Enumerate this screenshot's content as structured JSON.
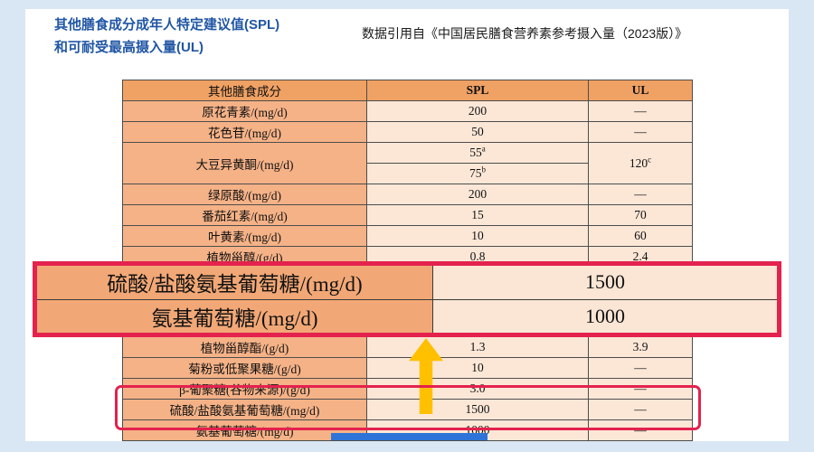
{
  "page": {
    "title_line1": "其他膳食成分成年人特定建议值(SPL)",
    "title_line2": "和可耐受最高摄入量(UL)",
    "source_note": "数据引用自《中国居民膳食营养素参考摄入量（2023版）》"
  },
  "table": {
    "headers": [
      "其他膳食成分",
      "SPL",
      "UL"
    ],
    "rows": [
      {
        "label": "原花青素/(mg/d)",
        "spl": "200",
        "ul": "—"
      },
      {
        "label": "花色苷/(mg/d)",
        "spl": "50",
        "ul": "—"
      },
      {
        "type": "split",
        "label": "大豆异黄酮/(mg/d)",
        "spl_top": "55",
        "spl_top_sup": "a",
        "spl_bottom": "75",
        "spl_bottom_sup": "b",
        "ul": "120",
        "ul_sup": "c"
      },
      {
        "label": "绿原酸/(mg/d)",
        "spl": "200",
        "ul": "—"
      },
      {
        "label": "番茄红素/(mg/d)",
        "spl": "15",
        "ul": "70"
      },
      {
        "label": "叶黄素/(mg/d)",
        "spl": "10",
        "ul": "60"
      },
      {
        "label": "植物甾醇/(g/d)",
        "spl": "0.8",
        "ul": "2.4"
      },
      {
        "type": "gap"
      },
      {
        "label": "植物甾醇酯/(g/d)",
        "spl": "1.3",
        "ul": "3.9"
      },
      {
        "label": "菊粉或低聚果糖/(g/d)",
        "spl": "10",
        "ul": "—"
      },
      {
        "label": "β-葡聚糖(谷物来源)/(g/d)",
        "spl": "3.0",
        "ul": "—"
      },
      {
        "label": "硫酸/盐酸氨基葡萄糖/(mg/d)",
        "spl": "1500",
        "ul": "—"
      },
      {
        "label": "氨基葡萄糖/(mg/d)",
        "spl": "1000",
        "ul": "—"
      }
    ]
  },
  "callout": {
    "rows": [
      {
        "label": "硫酸/盐酸氨基葡萄糖/(mg/d)",
        "value": "1500"
      },
      {
        "label": "氨基葡萄糖/(mg/d)",
        "value": "1000"
      }
    ]
  },
  "colors": {
    "page_bg": "#d9e7f4",
    "card_bg": "#ffffff",
    "title_blue": "#2156a5",
    "header_orange": "#f0a164",
    "label_orange": "#f5b287",
    "cell_peach": "#fce7d7",
    "callout_label_bg": "#f2a876",
    "callout_value_bg": "#fbe5d4",
    "accent_red": "#e3224e",
    "arrow_yellow": "#ffc000",
    "bar_blue": "#2e74d8",
    "border_gray": "#4d4d4d"
  }
}
